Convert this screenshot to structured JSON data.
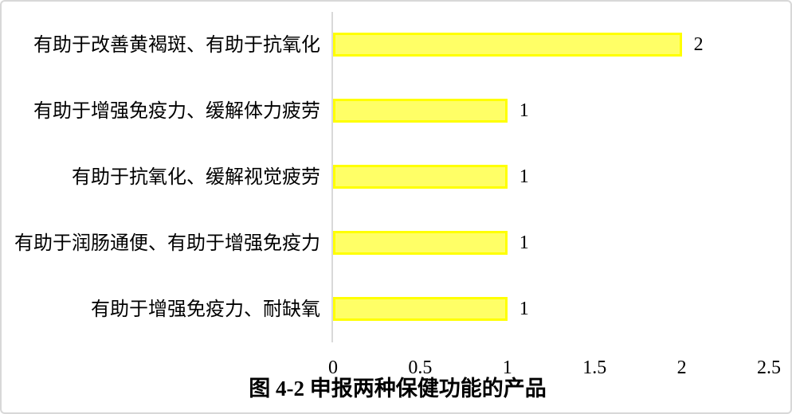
{
  "chart_data": {
    "type": "bar",
    "orientation": "horizontal",
    "title": "图 4-2 申报两种保健功能的产品",
    "categories": [
      "有助于改善黄褐斑、有助于抗氧化",
      "有助于增强免疫力、缓解体力疲劳",
      "有助于抗氧化、缓解视觉疲劳",
      "有助于润肠通便、有助于增强免疫力",
      "有助于增强免疫力、耐缺氧"
    ],
    "values": [
      2,
      1,
      1,
      1,
      1
    ],
    "value_labels": [
      "2",
      "1",
      "1",
      "1",
      "1"
    ],
    "xlabel": "",
    "ylabel": "",
    "xlim": [
      0,
      2.5
    ],
    "xticks": [
      0,
      0.5,
      1,
      1.5,
      2,
      2.5
    ],
    "xtick_labels": [
      "0",
      "0.5",
      "1",
      "1.5",
      "2",
      "2.5"
    ],
    "grid": false,
    "legend_visible": false,
    "colors": {
      "bar_fill": "#FFFF66",
      "bar_border": "#FFFF00",
      "axis_line": "#D9D9D9",
      "text": "#000000"
    }
  }
}
